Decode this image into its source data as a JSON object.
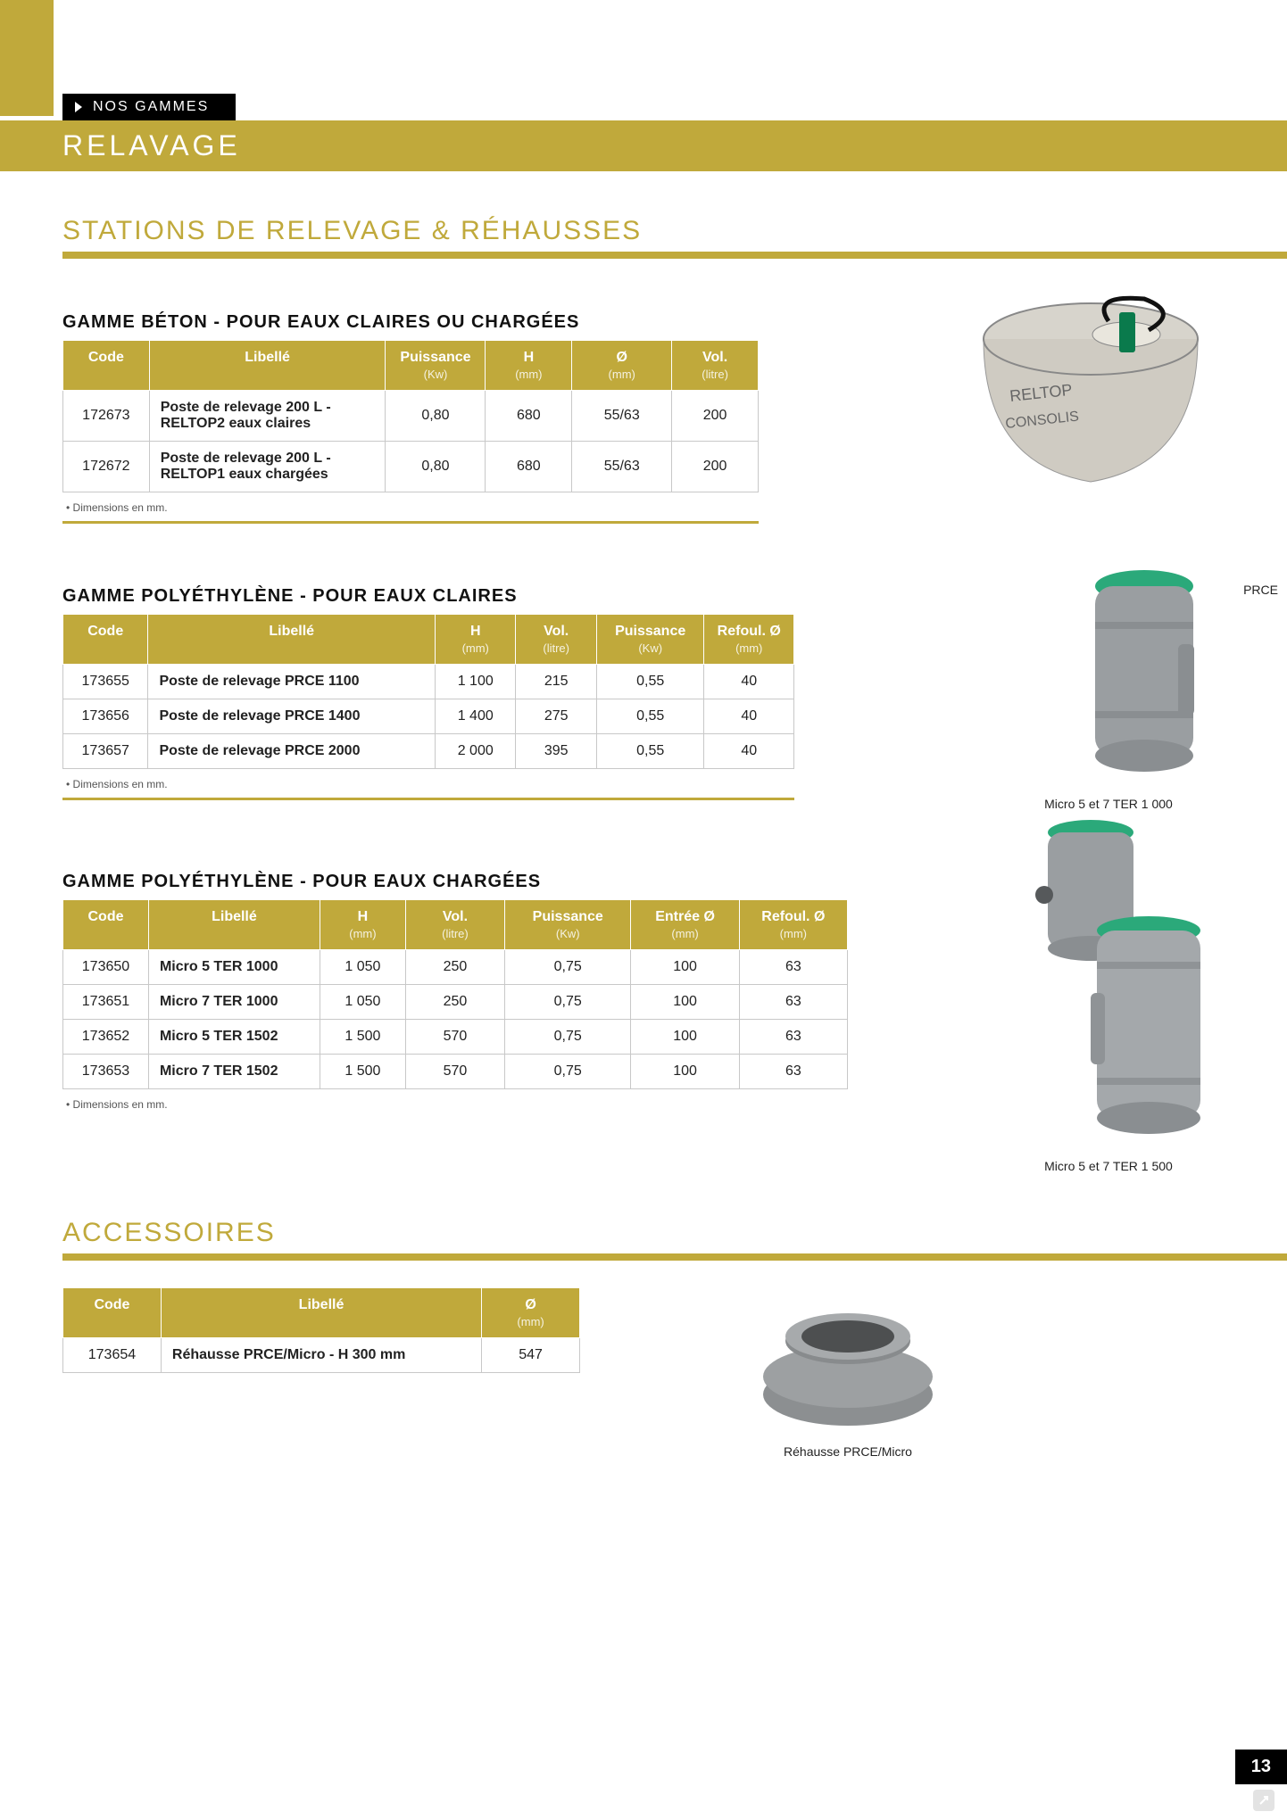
{
  "colors": {
    "olive": "#c0a93b",
    "black": "#000000",
    "white": "#ffffff",
    "grid": "#c8c8c8"
  },
  "header": {
    "tag": "NOS GAMMES",
    "band": "RELAVAGE"
  },
  "section1": {
    "title": "STATIONS DE RELEVAGE & RÉHAUSSES"
  },
  "beton": {
    "title": "GAMME BÉTON - POUR EAUX CLAIRES OU CHARGÉES",
    "note": "Dimensions en mm.",
    "columns": {
      "code": "Code",
      "libelle": "Libellé",
      "puissance": "Puissance",
      "puissance_sub": "(Kw)",
      "h": "H",
      "h_sub": "(mm)",
      "dia": "Ø",
      "dia_sub": "(mm)",
      "vol": "Vol.",
      "vol_sub": "(litre)"
    },
    "rows": [
      {
        "code": "172673",
        "libelle": "Poste de relevage 200 L - RELTOP2 eaux claires",
        "puissance": "0,80",
        "h": "680",
        "dia": "55/63",
        "vol": "200"
      },
      {
        "code": "172672",
        "libelle": "Poste de relevage 200 L - RELTOP1 eaux chargées",
        "puissance": "0,80",
        "h": "680",
        "dia": "55/63",
        "vol": "200"
      }
    ]
  },
  "prce": {
    "title": "GAMME POLYÉTHYLÈNE -  POUR EAUX CLAIRES",
    "note": "Dimensions en mm.",
    "caption": "PRCE",
    "columns": {
      "code": "Code",
      "libelle": "Libellé",
      "h": "H",
      "h_sub": "(mm)",
      "vol": "Vol.",
      "vol_sub": "(litre)",
      "puissance": "Puissance",
      "puissance_sub": "(Kw)",
      "refoul": "Refoul. Ø",
      "refoul_sub": "(mm)"
    },
    "rows": [
      {
        "code": "173655",
        "libelle": "Poste de relevage PRCE 1100",
        "h": "1 100",
        "vol": "215",
        "puissance": "0,55",
        "refoul": "40"
      },
      {
        "code": "173656",
        "libelle": "Poste de relevage PRCE 1400",
        "h": "1 400",
        "vol": "275",
        "puissance": "0,55",
        "refoul": "40"
      },
      {
        "code": "173657",
        "libelle": "Poste de relevage PRCE 2000",
        "h": "2 000",
        "vol": "395",
        "puissance": "0,55",
        "refoul": "40"
      }
    ]
  },
  "ter": {
    "title": "GAMME POLYÉTHYLÈNE - POUR EAUX CHARGÉES",
    "note": "Dimensions en mm.",
    "caption_top": "Micro 5 et 7 TER 1 000",
    "caption_bottom": "Micro 5 et 7 TER 1 500",
    "columns": {
      "code": "Code",
      "libelle": "Libellé",
      "h": "H",
      "h_sub": "(mm)",
      "vol": "Vol.",
      "vol_sub": "(litre)",
      "puissance": "Puissance",
      "puissance_sub": "(Kw)",
      "entree": "Entrée Ø",
      "entree_sub": "(mm)",
      "refoul": "Refoul. Ø",
      "refoul_sub": "(mm)"
    },
    "rows": [
      {
        "code": "173650",
        "libelle": "Micro 5 TER 1000",
        "h": "1 050",
        "vol": "250",
        "puissance": "0,75",
        "entree": "100",
        "refoul": "63"
      },
      {
        "code": "173651",
        "libelle": "Micro 7 TER 1000",
        "h": "1 050",
        "vol": "250",
        "puissance": "0,75",
        "entree": "100",
        "refoul": "63"
      },
      {
        "code": "173652",
        "libelle": "Micro 5 TER 1502",
        "h": "1 500",
        "vol": "570",
        "puissance": "0,75",
        "entree": "100",
        "refoul": "63"
      },
      {
        "code": "173653",
        "libelle": "Micro 7 TER 1502",
        "h": "1 500",
        "vol": "570",
        "puissance": "0,75",
        "entree": "100",
        "refoul": "63"
      }
    ]
  },
  "accessoires": {
    "title": "ACCESSOIRES",
    "caption": "Réhausse PRCE/Micro",
    "columns": {
      "code": "Code",
      "libelle": "Libellé",
      "dia": "Ø",
      "dia_sub": "(mm)"
    },
    "rows": [
      {
        "code": "173654",
        "libelle": "Réhausse PRCE/Micro - H 300 mm",
        "dia": "547"
      }
    ]
  },
  "page_number": "13"
}
